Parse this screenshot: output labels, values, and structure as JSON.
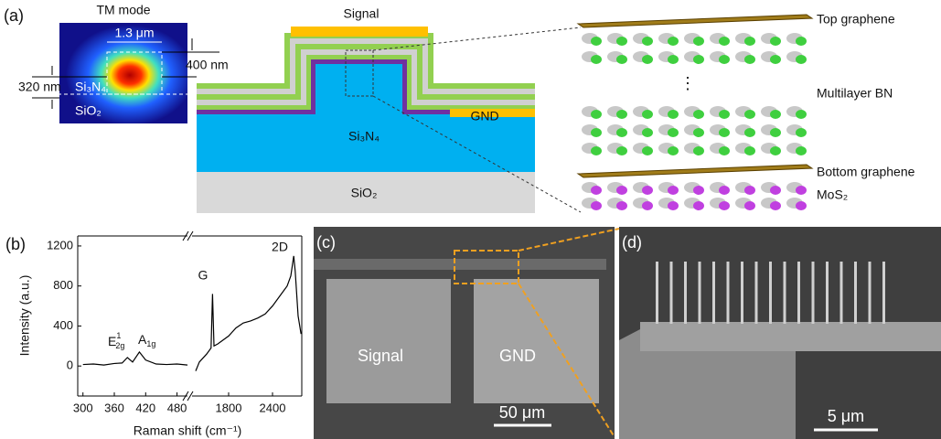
{
  "panel_a": {
    "label": "(a)",
    "inset_title": "TM mode",
    "width_label": "1.3 μm",
    "height_label": "400 nm",
    "thickness_label": "320 nm",
    "inset_core": "Si₃N₄",
    "inset_substrate": "SiO₂",
    "signal": "Signal",
    "gnd": "GND",
    "core": "Si₃N₄",
    "substrate": "SiO₂",
    "top_graphene": "Top graphene",
    "multilayer_bn": "Multilayer BN",
    "bottom_graphene": "Bottom graphene",
    "mos2": "MoS₂"
  },
  "panel_b": {
    "label": "(b)",
    "chart_data": {
      "type": "line",
      "x_label": "Raman shift (cm⁻¹)",
      "y_label": "Intensity (a.u.)",
      "ylim": [
        -300,
        1300
      ],
      "yticks": [
        0,
        400,
        800,
        1200
      ],
      "color": "#000000",
      "segments": [
        {
          "xlim": [
            290,
            500
          ],
          "xticks": [
            300,
            360,
            420,
            480
          ],
          "x": [
            300,
            320,
            340,
            360,
            375,
            385,
            395,
            408,
            420,
            440,
            460,
            480,
            500
          ],
          "values": [
            15,
            20,
            10,
            25,
            30,
            85,
            40,
            140,
            60,
            20,
            15,
            20,
            10
          ]
        },
        {
          "xlim": [
            1300,
            2800
          ],
          "xticks": [
            1800,
            2400
          ],
          "x": [
            1350,
            1400,
            1450,
            1500,
            1560,
            1580,
            1600,
            1650,
            1800,
            1900,
            2000,
            2100,
            2200,
            2300,
            2400,
            2500,
            2600,
            2650,
            2690,
            2710,
            2750,
            2790
          ],
          "values": [
            -50,
            40,
            80,
            120,
            180,
            720,
            200,
            220,
            300,
            380,
            430,
            450,
            480,
            520,
            600,
            700,
            800,
            900,
            1100,
            950,
            500,
            320
          ]
        }
      ],
      "annotations": {
        "e2g": {
          "base": "E",
          "sup": "1",
          "sub": "2g"
        },
        "a1g": {
          "base": "A",
          "sub": "1g"
        },
        "g": "G",
        "two_d": "2D"
      }
    }
  },
  "panel_c": {
    "label": "(c)",
    "signal": "Signal",
    "gnd": "GND",
    "scale": "50 μm"
  },
  "panel_d": {
    "label": "(d)",
    "scale": "5 μm"
  }
}
